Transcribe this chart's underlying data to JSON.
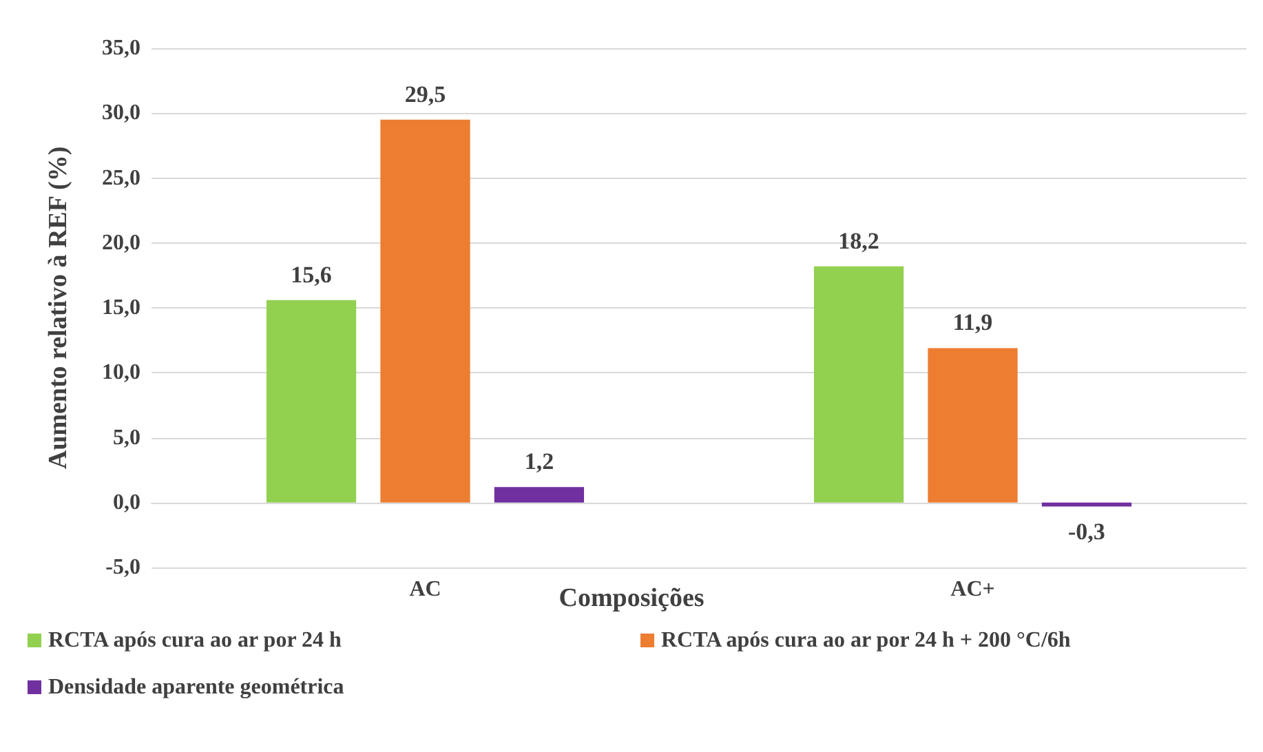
{
  "chart_data": {
    "type": "bar",
    "xlabel": "Composições",
    "ylabel": "Aumento relativo à REF (%)",
    "categories": [
      "AC",
      "AC+"
    ],
    "series": [
      {
        "name": "RCTA após cura ao ar por 24 h",
        "color": "#92d050",
        "values": [
          15.6,
          18.2
        ],
        "value_labels": [
          "15,6",
          "18,2"
        ]
      },
      {
        "name": "RCTA após cura ao ar por 24 h + 200 °C/6h",
        "color": "#ed7d31",
        "values": [
          29.5,
          11.9
        ],
        "value_labels": [
          "29,5",
          "11,9"
        ]
      },
      {
        "name": "Densidade aparente geométrica",
        "color": "#7030a0",
        "values": [
          1.2,
          -0.3
        ],
        "value_labels": [
          "1,2",
          "-0,3"
        ]
      }
    ],
    "ylim": [
      -5,
      35
    ],
    "yticks": [
      {
        "value": -5,
        "label": "-5,0"
      },
      {
        "value": 0,
        "label": "0,0"
      },
      {
        "value": 5,
        "label": "5,0"
      },
      {
        "value": 10,
        "label": "10,0"
      },
      {
        "value": 15,
        "label": "15,0"
      },
      {
        "value": 20,
        "label": "20,0"
      },
      {
        "value": 25,
        "label": "25,0"
      },
      {
        "value": 30,
        "label": "30,0"
      },
      {
        "value": 35,
        "label": "35,0"
      }
    ],
    "grid": "y",
    "legend": "bottom"
  }
}
